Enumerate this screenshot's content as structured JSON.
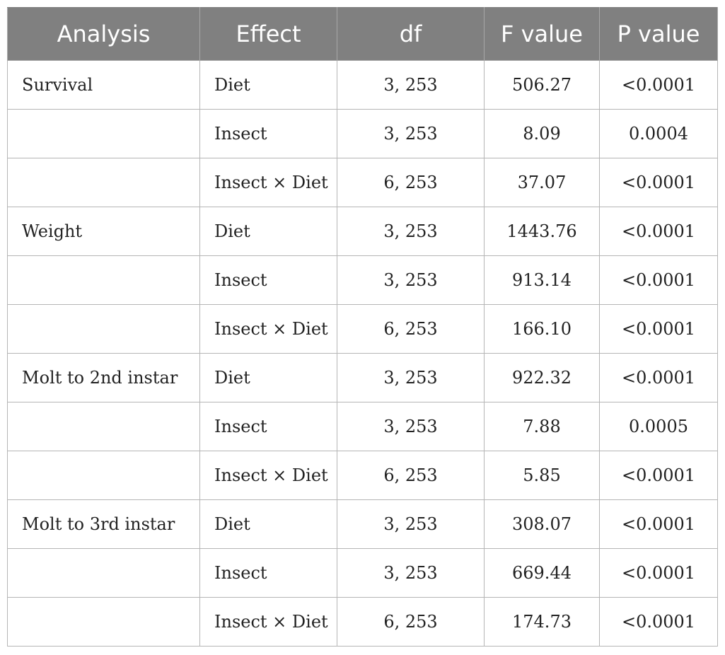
{
  "table": {
    "headers": [
      "Analysis",
      "Effect",
      "df",
      "F value",
      "P value"
    ],
    "rows": [
      {
        "analysis": "Survival",
        "effect": "Diet",
        "df": "3, 253",
        "f_value": "506.27",
        "p_value": "<0.0001"
      },
      {
        "analysis": "",
        "effect": "Insect",
        "df": "3, 253",
        "f_value": "8.09",
        "p_value": "0.0004"
      },
      {
        "analysis": "",
        "effect": "Insect × Diet",
        "df": "6, 253",
        "f_value": "37.07",
        "p_value": "<0.0001"
      },
      {
        "analysis": "Weight",
        "effect": "Diet",
        "df": "3, 253",
        "f_value": "1443.76",
        "p_value": "<0.0001"
      },
      {
        "analysis": "",
        "effect": "Insect",
        "df": "3, 253",
        "f_value": "913.14",
        "p_value": "<0.0001"
      },
      {
        "analysis": "",
        "effect": "Insect × Diet",
        "df": "6, 253",
        "f_value": "166.10",
        "p_value": "<0.0001"
      },
      {
        "analysis": "Molt to 2nd instar",
        "effect": "Diet",
        "df": "3, 253",
        "f_value": "922.32",
        "p_value": "<0.0001"
      },
      {
        "analysis": "",
        "effect": "Insect",
        "df": "3, 253",
        "f_value": "7.88",
        "p_value": "0.0005"
      },
      {
        "analysis": "",
        "effect": "Insect × Diet",
        "df": "6, 253",
        "f_value": "5.85",
        "p_value": "<0.0001"
      },
      {
        "analysis": "Molt to 3rd instar",
        "effect": "Diet",
        "df": "3, 253",
        "f_value": "308.07",
        "p_value": "<0.0001"
      },
      {
        "analysis": "",
        "effect": "Insect",
        "df": "3, 253",
        "f_value": "669.44",
        "p_value": "<0.0001"
      },
      {
        "analysis": "",
        "effect": "Insect × Diet",
        "df": "6, 253",
        "f_value": "174.73",
        "p_value": "<0.0001"
      }
    ]
  },
  "colors": {
    "header_background": "#808080",
    "header_text": "#ffffff",
    "grid_lines": "#b5b5b5",
    "body_text": "#222222"
  }
}
